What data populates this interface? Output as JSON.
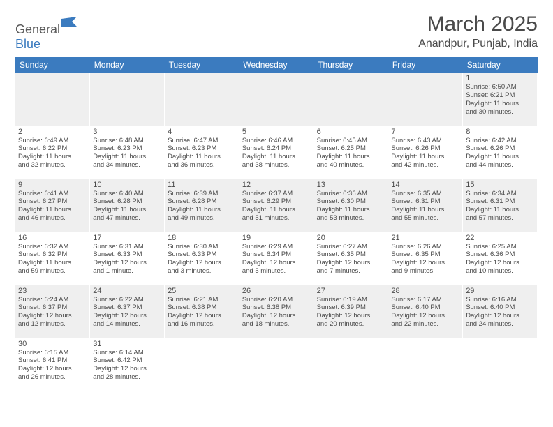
{
  "logo": {
    "text1": "General",
    "text2": "Blue"
  },
  "title": "March 2025",
  "location": "Anandpur, Punjab, India",
  "colors": {
    "header_bg": "#3b7bbf",
    "header_fg": "#ffffff",
    "shade_bg": "#efefef",
    "text": "#4a4a4a",
    "rule": "#3b7bbf"
  },
  "daysOfWeek": [
    "Sunday",
    "Monday",
    "Tuesday",
    "Wednesday",
    "Thursday",
    "Friday",
    "Saturday"
  ],
  "weeks": [
    {
      "shade": true,
      "cells": [
        null,
        null,
        null,
        null,
        null,
        null,
        {
          "n": "1",
          "sr": "Sunrise: 6:50 AM",
          "ss": "Sunset: 6:21 PM",
          "d1": "Daylight: 11 hours",
          "d2": "and 30 minutes."
        }
      ]
    },
    {
      "shade": false,
      "cells": [
        {
          "n": "2",
          "sr": "Sunrise: 6:49 AM",
          "ss": "Sunset: 6:22 PM",
          "d1": "Daylight: 11 hours",
          "d2": "and 32 minutes."
        },
        {
          "n": "3",
          "sr": "Sunrise: 6:48 AM",
          "ss": "Sunset: 6:23 PM",
          "d1": "Daylight: 11 hours",
          "d2": "and 34 minutes."
        },
        {
          "n": "4",
          "sr": "Sunrise: 6:47 AM",
          "ss": "Sunset: 6:23 PM",
          "d1": "Daylight: 11 hours",
          "d2": "and 36 minutes."
        },
        {
          "n": "5",
          "sr": "Sunrise: 6:46 AM",
          "ss": "Sunset: 6:24 PM",
          "d1": "Daylight: 11 hours",
          "d2": "and 38 minutes."
        },
        {
          "n": "6",
          "sr": "Sunrise: 6:45 AM",
          "ss": "Sunset: 6:25 PM",
          "d1": "Daylight: 11 hours",
          "d2": "and 40 minutes."
        },
        {
          "n": "7",
          "sr": "Sunrise: 6:43 AM",
          "ss": "Sunset: 6:26 PM",
          "d1": "Daylight: 11 hours",
          "d2": "and 42 minutes."
        },
        {
          "n": "8",
          "sr": "Sunrise: 6:42 AM",
          "ss": "Sunset: 6:26 PM",
          "d1": "Daylight: 11 hours",
          "d2": "and 44 minutes."
        }
      ]
    },
    {
      "shade": true,
      "cells": [
        {
          "n": "9",
          "sr": "Sunrise: 6:41 AM",
          "ss": "Sunset: 6:27 PM",
          "d1": "Daylight: 11 hours",
          "d2": "and 46 minutes."
        },
        {
          "n": "10",
          "sr": "Sunrise: 6:40 AM",
          "ss": "Sunset: 6:28 PM",
          "d1": "Daylight: 11 hours",
          "d2": "and 47 minutes."
        },
        {
          "n": "11",
          "sr": "Sunrise: 6:39 AM",
          "ss": "Sunset: 6:28 PM",
          "d1": "Daylight: 11 hours",
          "d2": "and 49 minutes."
        },
        {
          "n": "12",
          "sr": "Sunrise: 6:37 AM",
          "ss": "Sunset: 6:29 PM",
          "d1": "Daylight: 11 hours",
          "d2": "and 51 minutes."
        },
        {
          "n": "13",
          "sr": "Sunrise: 6:36 AM",
          "ss": "Sunset: 6:30 PM",
          "d1": "Daylight: 11 hours",
          "d2": "and 53 minutes."
        },
        {
          "n": "14",
          "sr": "Sunrise: 6:35 AM",
          "ss": "Sunset: 6:31 PM",
          "d1": "Daylight: 11 hours",
          "d2": "and 55 minutes."
        },
        {
          "n": "15",
          "sr": "Sunrise: 6:34 AM",
          "ss": "Sunset: 6:31 PM",
          "d1": "Daylight: 11 hours",
          "d2": "and 57 minutes."
        }
      ]
    },
    {
      "shade": false,
      "cells": [
        {
          "n": "16",
          "sr": "Sunrise: 6:32 AM",
          "ss": "Sunset: 6:32 PM",
          "d1": "Daylight: 11 hours",
          "d2": "and 59 minutes."
        },
        {
          "n": "17",
          "sr": "Sunrise: 6:31 AM",
          "ss": "Sunset: 6:33 PM",
          "d1": "Daylight: 12 hours",
          "d2": "and 1 minute."
        },
        {
          "n": "18",
          "sr": "Sunrise: 6:30 AM",
          "ss": "Sunset: 6:33 PM",
          "d1": "Daylight: 12 hours",
          "d2": "and 3 minutes."
        },
        {
          "n": "19",
          "sr": "Sunrise: 6:29 AM",
          "ss": "Sunset: 6:34 PM",
          "d1": "Daylight: 12 hours",
          "d2": "and 5 minutes."
        },
        {
          "n": "20",
          "sr": "Sunrise: 6:27 AM",
          "ss": "Sunset: 6:35 PM",
          "d1": "Daylight: 12 hours",
          "d2": "and 7 minutes."
        },
        {
          "n": "21",
          "sr": "Sunrise: 6:26 AM",
          "ss": "Sunset: 6:35 PM",
          "d1": "Daylight: 12 hours",
          "d2": "and 9 minutes."
        },
        {
          "n": "22",
          "sr": "Sunrise: 6:25 AM",
          "ss": "Sunset: 6:36 PM",
          "d1": "Daylight: 12 hours",
          "d2": "and 10 minutes."
        }
      ]
    },
    {
      "shade": true,
      "cells": [
        {
          "n": "23",
          "sr": "Sunrise: 6:24 AM",
          "ss": "Sunset: 6:37 PM",
          "d1": "Daylight: 12 hours",
          "d2": "and 12 minutes."
        },
        {
          "n": "24",
          "sr": "Sunrise: 6:22 AM",
          "ss": "Sunset: 6:37 PM",
          "d1": "Daylight: 12 hours",
          "d2": "and 14 minutes."
        },
        {
          "n": "25",
          "sr": "Sunrise: 6:21 AM",
          "ss": "Sunset: 6:38 PM",
          "d1": "Daylight: 12 hours",
          "d2": "and 16 minutes."
        },
        {
          "n": "26",
          "sr": "Sunrise: 6:20 AM",
          "ss": "Sunset: 6:38 PM",
          "d1": "Daylight: 12 hours",
          "d2": "and 18 minutes."
        },
        {
          "n": "27",
          "sr": "Sunrise: 6:19 AM",
          "ss": "Sunset: 6:39 PM",
          "d1": "Daylight: 12 hours",
          "d2": "and 20 minutes."
        },
        {
          "n": "28",
          "sr": "Sunrise: 6:17 AM",
          "ss": "Sunset: 6:40 PM",
          "d1": "Daylight: 12 hours",
          "d2": "and 22 minutes."
        },
        {
          "n": "29",
          "sr": "Sunrise: 6:16 AM",
          "ss": "Sunset: 6:40 PM",
          "d1": "Daylight: 12 hours",
          "d2": "and 24 minutes."
        }
      ]
    },
    {
      "shade": false,
      "cells": [
        {
          "n": "30",
          "sr": "Sunrise: 6:15 AM",
          "ss": "Sunset: 6:41 PM",
          "d1": "Daylight: 12 hours",
          "d2": "and 26 minutes."
        },
        {
          "n": "31",
          "sr": "Sunrise: 6:14 AM",
          "ss": "Sunset: 6:42 PM",
          "d1": "Daylight: 12 hours",
          "d2": "and 28 minutes."
        },
        null,
        null,
        null,
        null,
        null
      ]
    }
  ]
}
